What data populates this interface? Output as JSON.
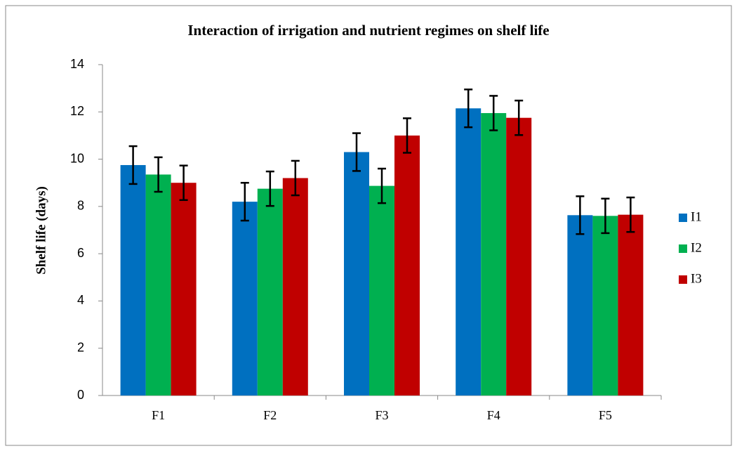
{
  "chart_data": {
    "type": "bar",
    "title": "Interaction of irrigation and nutrient regimes on shelf life",
    "y_label": "Shelf life (days)",
    "categories": [
      "F1",
      "F2",
      "F3",
      "F4",
      "F5"
    ],
    "series": [
      {
        "name": "I1",
        "color": "#0070c0",
        "values": [
          9.75,
          8.2,
          10.3,
          12.15,
          7.63
        ],
        "errors": [
          0.8,
          0.8,
          0.8,
          0.8,
          0.8
        ]
      },
      {
        "name": "I2",
        "color": "#00b050",
        "values": [
          9.35,
          8.75,
          8.87,
          11.95,
          7.6
        ],
        "errors": [
          0.73,
          0.73,
          0.73,
          0.73,
          0.73
        ]
      },
      {
        "name": "I3",
        "color": "#c00000",
        "values": [
          9.0,
          9.2,
          11.0,
          11.75,
          7.65
        ],
        "errors": [
          0.73,
          0.73,
          0.73,
          0.73,
          0.73
        ]
      }
    ],
    "ylim": [
      0,
      14
    ],
    "yticks": [
      0,
      2,
      4,
      6,
      8,
      10,
      12,
      14
    ],
    "grid": false,
    "legend": "right"
  }
}
